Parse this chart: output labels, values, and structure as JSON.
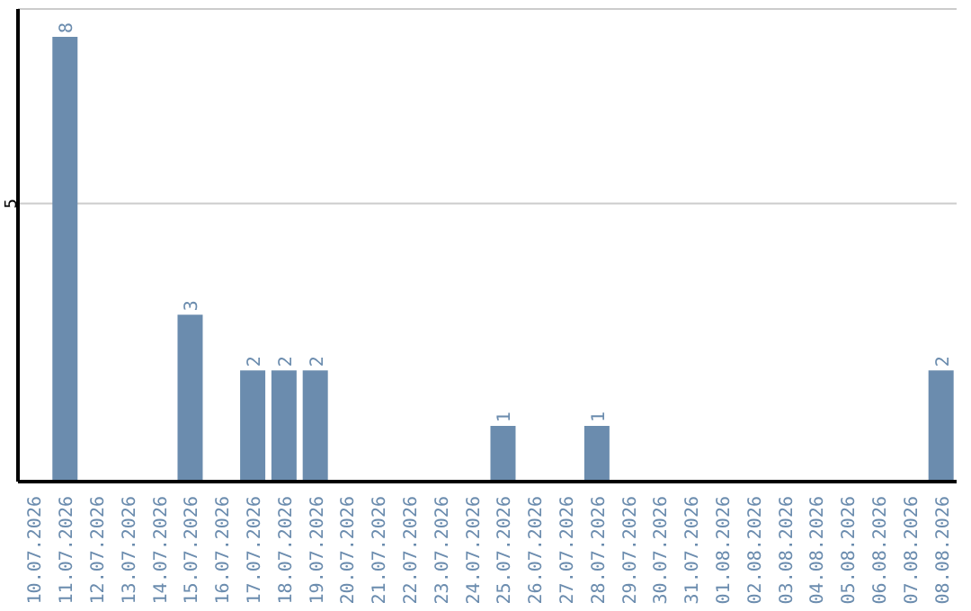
{
  "chart_data": {
    "type": "bar",
    "categories": [
      "10.07.2026",
      "11.07.2026",
      "12.07.2026",
      "13.07.2026",
      "14.07.2026",
      "15.07.2026",
      "16.07.2026",
      "17.07.2026",
      "18.07.2026",
      "19.07.2026",
      "20.07.2026",
      "21.07.2026",
      "22.07.2026",
      "23.07.2026",
      "24.07.2026",
      "25.07.2026",
      "26.07.2026",
      "27.07.2026",
      "28.07.2026",
      "29.07.2026",
      "30.07.2026",
      "31.07.2026",
      "01.08.2026",
      "02.08.2026",
      "03.08.2026",
      "04.08.2026",
      "05.08.2026",
      "06.08.2026",
      "07.08.2026",
      "08.08.2026"
    ],
    "values": [
      0,
      8,
      0,
      0,
      0,
      3,
      0,
      2,
      2,
      2,
      0,
      0,
      0,
      0,
      0,
      1,
      0,
      0,
      1,
      0,
      0,
      0,
      0,
      0,
      0,
      0,
      0,
      0,
      0,
      2
    ],
    "value_labels": [
      null,
      "8",
      null,
      null,
      null,
      "3",
      null,
      "2",
      "2",
      "2",
      null,
      null,
      null,
      null,
      null,
      "1",
      null,
      null,
      "1",
      null,
      null,
      null,
      null,
      null,
      null,
      null,
      null,
      null,
      null,
      "2"
    ],
    "color": "#6b8cae",
    "ylim": [
      0,
      8.5
    ],
    "yticks": [
      5
    ],
    "grid": "y"
  }
}
